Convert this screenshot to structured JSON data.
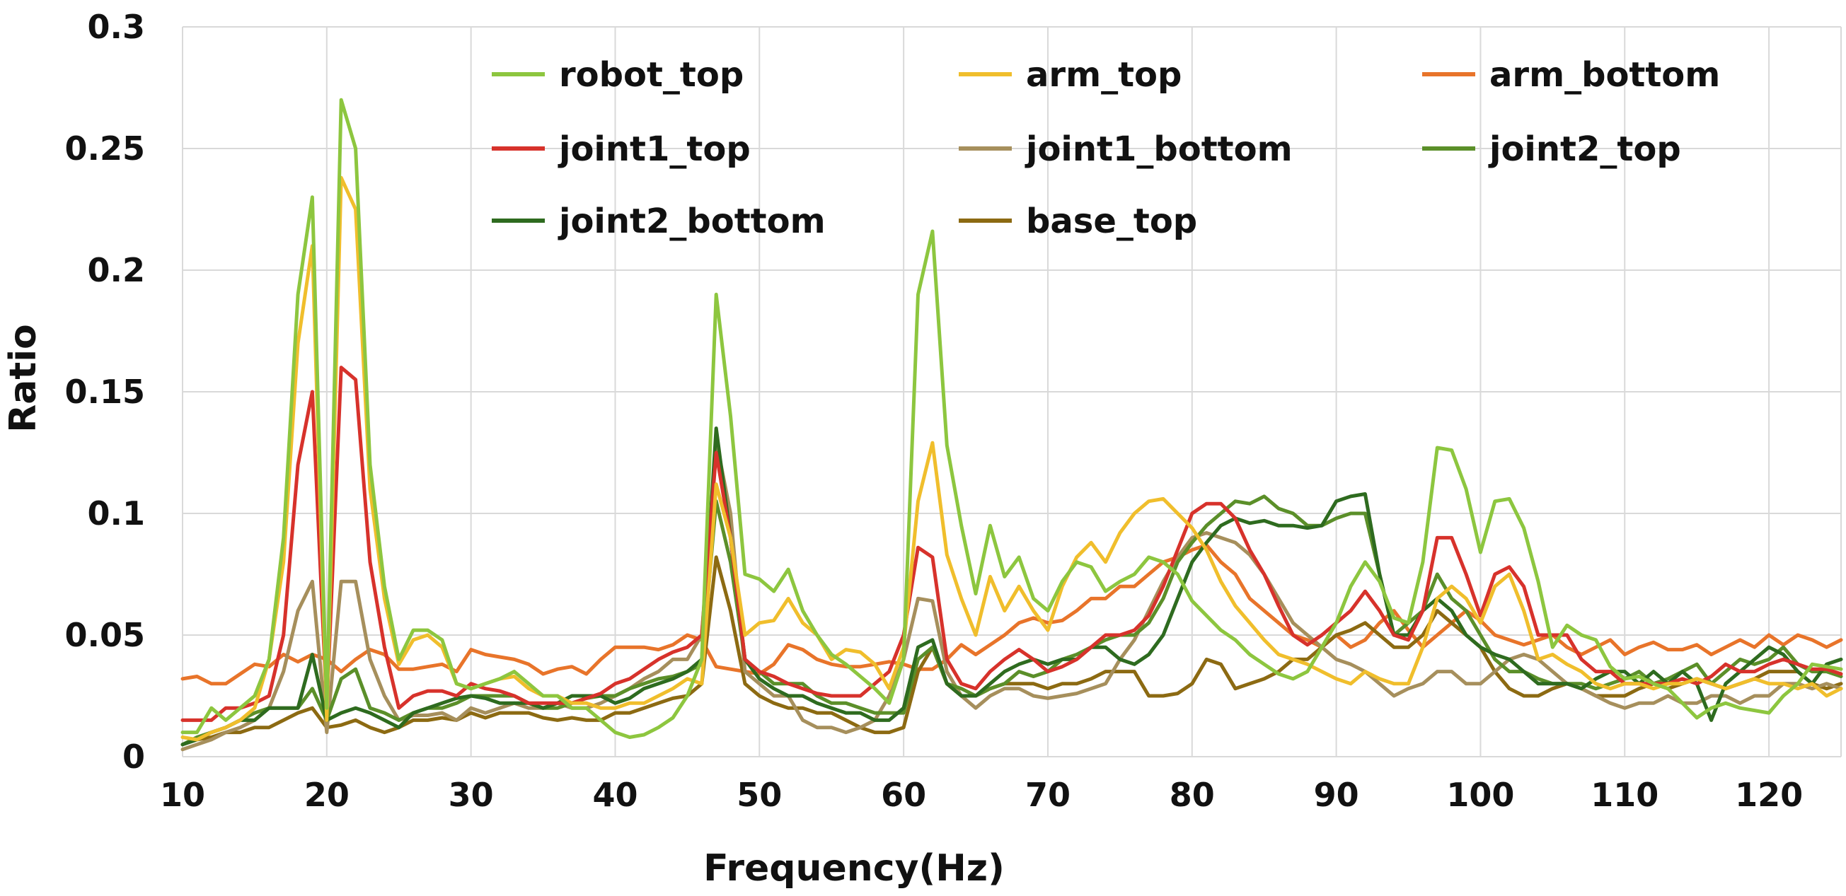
{
  "chart_data": {
    "type": "line",
    "title": "",
    "xlabel": "Frequency(Hz)",
    "ylabel": "Ratio",
    "xlim": [
      10,
      125
    ],
    "ylim": [
      0,
      0.3
    ],
    "x_ticks": [
      "10",
      "20",
      "30",
      "40",
      "50",
      "60",
      "70",
      "80",
      "90",
      "100",
      "110",
      "120"
    ],
    "y_ticks": [
      "0",
      "0.05",
      "0.1",
      "0.15",
      "0.2",
      "0.25",
      "0.3"
    ],
    "grid": "vertical and horizontal",
    "legend_position": "top, inside plot, 3 columns",
    "x": [
      10,
      11,
      12,
      13,
      14,
      15,
      16,
      17,
      18,
      19,
      20,
      21,
      22,
      23,
      24,
      25,
      26,
      27,
      28,
      29,
      30,
      31,
      32,
      33,
      34,
      35,
      36,
      37,
      38,
      39,
      40,
      41,
      42,
      43,
      44,
      45,
      46,
      47,
      48,
      49,
      50,
      51,
      52,
      53,
      54,
      55,
      56,
      57,
      58,
      59,
      60,
      61,
      62,
      63,
      64,
      65,
      66,
      67,
      68,
      69,
      70,
      71,
      72,
      73,
      74,
      75,
      76,
      77,
      78,
      79,
      80,
      81,
      82,
      83,
      84,
      85,
      86,
      87,
      88,
      89,
      90,
      91,
      92,
      93,
      94,
      95,
      96,
      97,
      98,
      99,
      100,
      101,
      102,
      103,
      104,
      105,
      106,
      107,
      108,
      109,
      110,
      111,
      112,
      113,
      114,
      115,
      116,
      117,
      118,
      119,
      120,
      121,
      122,
      123,
      124,
      125
    ],
    "series": [
      {
        "name": "robot_top",
        "color": "#8dc63f",
        "values": [
          0.01,
          0.01,
          0.02,
          0.015,
          0.02,
          0.025,
          0.04,
          0.09,
          0.19,
          0.23,
          0.02,
          0.27,
          0.25,
          0.12,
          0.07,
          0.04,
          0.052,
          0.052,
          0.048,
          0.03,
          0.028,
          0.03,
          0.032,
          0.035,
          0.03,
          0.025,
          0.025,
          0.02,
          0.02,
          0.015,
          0.01,
          0.008,
          0.009,
          0.012,
          0.016,
          0.025,
          0.04,
          0.19,
          0.14,
          0.075,
          0.073,
          0.068,
          0.077,
          0.06,
          0.05,
          0.042,
          0.038,
          0.033,
          0.028,
          0.022,
          0.04,
          0.19,
          0.216,
          0.128,
          0.095,
          0.067,
          0.095,
          0.074,
          0.082,
          0.065,
          0.06,
          0.072,
          0.08,
          0.078,
          0.068,
          0.072,
          0.075,
          0.082,
          0.08,
          0.075,
          0.064,
          0.058,
          0.052,
          0.048,
          0.042,
          0.038,
          0.034,
          0.032,
          0.035,
          0.045,
          0.055,
          0.07,
          0.08,
          0.072,
          0.057,
          0.055,
          0.08,
          0.127,
          0.126,
          0.11,
          0.084,
          0.105,
          0.106,
          0.094,
          0.072,
          0.045,
          0.054,
          0.05,
          0.048,
          0.037,
          0.032,
          0.033,
          0.03,
          0.028,
          0.022,
          0.016,
          0.02,
          0.022,
          0.02,
          0.019,
          0.018,
          0.025,
          0.03,
          0.038,
          0.037,
          0.036
        ]
      },
      {
        "name": "arm_top",
        "color": "#f0be2c",
        "values": [
          0.008,
          0.007,
          0.01,
          0.012,
          0.015,
          0.02,
          0.04,
          0.08,
          0.17,
          0.21,
          0.015,
          0.238,
          0.225,
          0.11,
          0.065,
          0.038,
          0.048,
          0.05,
          0.045,
          0.03,
          0.028,
          0.03,
          0.032,
          0.033,
          0.028,
          0.025,
          0.025,
          0.022,
          0.022,
          0.02,
          0.02,
          0.022,
          0.022,
          0.025,
          0.028,
          0.032,
          0.03,
          0.112,
          0.09,
          0.05,
          0.055,
          0.056,
          0.065,
          0.055,
          0.05,
          0.04,
          0.044,
          0.043,
          0.038,
          0.028,
          0.045,
          0.105,
          0.129,
          0.083,
          0.065,
          0.05,
          0.074,
          0.06,
          0.07,
          0.06,
          0.052,
          0.07,
          0.082,
          0.088,
          0.08,
          0.092,
          0.1,
          0.105,
          0.106,
          0.1,
          0.094,
          0.085,
          0.072,
          0.062,
          0.055,
          0.048,
          0.042,
          0.04,
          0.038,
          0.035,
          0.032,
          0.03,
          0.035,
          0.032,
          0.03,
          0.03,
          0.045,
          0.065,
          0.07,
          0.065,
          0.055,
          0.07,
          0.075,
          0.06,
          0.04,
          0.042,
          0.038,
          0.035,
          0.03,
          0.028,
          0.03,
          0.03,
          0.028,
          0.03,
          0.03,
          0.032,
          0.03,
          0.028,
          0.03,
          0.032,
          0.03,
          0.03,
          0.028,
          0.03,
          0.025,
          0.028
        ]
      },
      {
        "name": "arm_bottom",
        "color": "#e8742a",
        "values": [
          0.032,
          0.033,
          0.03,
          0.03,
          0.034,
          0.038,
          0.037,
          0.042,
          0.039,
          0.042,
          0.04,
          0.035,
          0.04,
          0.044,
          0.042,
          0.036,
          0.036,
          0.037,
          0.038,
          0.035,
          0.044,
          0.042,
          0.041,
          0.04,
          0.038,
          0.034,
          0.036,
          0.037,
          0.034,
          0.04,
          0.045,
          0.045,
          0.045,
          0.044,
          0.046,
          0.05,
          0.048,
          0.037,
          0.036,
          0.035,
          0.034,
          0.038,
          0.046,
          0.044,
          0.04,
          0.038,
          0.037,
          0.037,
          0.038,
          0.039,
          0.038,
          0.036,
          0.036,
          0.04,
          0.046,
          0.042,
          0.046,
          0.05,
          0.055,
          0.057,
          0.055,
          0.056,
          0.06,
          0.065,
          0.065,
          0.07,
          0.07,
          0.075,
          0.08,
          0.082,
          0.085,
          0.087,
          0.08,
          0.075,
          0.065,
          0.06,
          0.055,
          0.05,
          0.048,
          0.045,
          0.05,
          0.045,
          0.048,
          0.055,
          0.06,
          0.052,
          0.045,
          0.05,
          0.055,
          0.06,
          0.056,
          0.05,
          0.048,
          0.046,
          0.048,
          0.05,
          0.045,
          0.042,
          0.045,
          0.048,
          0.042,
          0.045,
          0.047,
          0.044,
          0.044,
          0.046,
          0.042,
          0.045,
          0.048,
          0.045,
          0.05,
          0.046,
          0.05,
          0.048,
          0.045,
          0.048
        ]
      },
      {
        "name": "joint1_top",
        "color": "#d7322b",
        "values": [
          0.015,
          0.015,
          0.015,
          0.02,
          0.02,
          0.022,
          0.025,
          0.05,
          0.12,
          0.15,
          0.02,
          0.16,
          0.155,
          0.08,
          0.045,
          0.02,
          0.025,
          0.027,
          0.027,
          0.025,
          0.03,
          0.028,
          0.027,
          0.025,
          0.022,
          0.022,
          0.022,
          0.022,
          0.024,
          0.026,
          0.03,
          0.032,
          0.036,
          0.04,
          0.043,
          0.045,
          0.05,
          0.125,
          0.09,
          0.04,
          0.035,
          0.033,
          0.03,
          0.028,
          0.026,
          0.025,
          0.025,
          0.025,
          0.03,
          0.035,
          0.05,
          0.086,
          0.082,
          0.04,
          0.03,
          0.028,
          0.035,
          0.04,
          0.044,
          0.04,
          0.035,
          0.037,
          0.04,
          0.045,
          0.05,
          0.05,
          0.052,
          0.058,
          0.07,
          0.085,
          0.1,
          0.104,
          0.104,
          0.098,
          0.085,
          0.075,
          0.062,
          0.05,
          0.046,
          0.05,
          0.055,
          0.06,
          0.068,
          0.06,
          0.05,
          0.048,
          0.06,
          0.09,
          0.09,
          0.075,
          0.058,
          0.075,
          0.078,
          0.07,
          0.05,
          0.05,
          0.05,
          0.04,
          0.035,
          0.035,
          0.03,
          0.03,
          0.03,
          0.03,
          0.032,
          0.03,
          0.033,
          0.038,
          0.035,
          0.035,
          0.038,
          0.04,
          0.038,
          0.036,
          0.036,
          0.034
        ]
      },
      {
        "name": "joint1_bottom",
        "color": "#a68f5c",
        "values": [
          0.003,
          0.005,
          0.007,
          0.01,
          0.012,
          0.015,
          0.02,
          0.035,
          0.06,
          0.072,
          0.01,
          0.072,
          0.072,
          0.04,
          0.025,
          0.015,
          0.017,
          0.017,
          0.018,
          0.015,
          0.02,
          0.018,
          0.02,
          0.022,
          0.02,
          0.02,
          0.022,
          0.02,
          0.02,
          0.022,
          0.025,
          0.028,
          0.032,
          0.035,
          0.04,
          0.04,
          0.05,
          0.13,
          0.1,
          0.035,
          0.03,
          0.025,
          0.025,
          0.015,
          0.012,
          0.012,
          0.01,
          0.012,
          0.015,
          0.025,
          0.04,
          0.065,
          0.064,
          0.035,
          0.025,
          0.02,
          0.025,
          0.028,
          0.028,
          0.025,
          0.024,
          0.025,
          0.026,
          0.028,
          0.03,
          0.04,
          0.048,
          0.06,
          0.072,
          0.082,
          0.09,
          0.092,
          0.09,
          0.088,
          0.083,
          0.075,
          0.065,
          0.055,
          0.05,
          0.045,
          0.04,
          0.038,
          0.035,
          0.03,
          0.025,
          0.028,
          0.03,
          0.035,
          0.035,
          0.03,
          0.03,
          0.035,
          0.04,
          0.042,
          0.04,
          0.035,
          0.03,
          0.028,
          0.025,
          0.022,
          0.02,
          0.022,
          0.022,
          0.025,
          0.022,
          0.022,
          0.025,
          0.025,
          0.022,
          0.025,
          0.025,
          0.03,
          0.03,
          0.028,
          0.03,
          0.028
        ]
      },
      {
        "name": "joint2_top",
        "color": "#5b8f29",
        "values": [
          0.005,
          0.008,
          0.01,
          0.012,
          0.015,
          0.018,
          0.02,
          0.02,
          0.02,
          0.028,
          0.015,
          0.032,
          0.036,
          0.02,
          0.018,
          0.015,
          0.018,
          0.02,
          0.02,
          0.022,
          0.025,
          0.025,
          0.025,
          0.025,
          0.022,
          0.02,
          0.02,
          0.022,
          0.024,
          0.025,
          0.025,
          0.028,
          0.03,
          0.032,
          0.033,
          0.035,
          0.038,
          0.105,
          0.08,
          0.04,
          0.035,
          0.03,
          0.03,
          0.03,
          0.025,
          0.022,
          0.022,
          0.02,
          0.018,
          0.018,
          0.018,
          0.04,
          0.045,
          0.03,
          0.028,
          0.025,
          0.028,
          0.03,
          0.035,
          0.033,
          0.035,
          0.04,
          0.042,
          0.045,
          0.048,
          0.05,
          0.05,
          0.055,
          0.065,
          0.08,
          0.088,
          0.095,
          0.1,
          0.105,
          0.104,
          0.107,
          0.102,
          0.1,
          0.095,
          0.095,
          0.098,
          0.1,
          0.1,
          0.075,
          0.05,
          0.055,
          0.06,
          0.075,
          0.065,
          0.06,
          0.05,
          0.04,
          0.035,
          0.035,
          0.032,
          0.03,
          0.03,
          0.03,
          0.028,
          0.03,
          0.032,
          0.035,
          0.03,
          0.032,
          0.035,
          0.038,
          0.03,
          0.035,
          0.04,
          0.038,
          0.04,
          0.045,
          0.038,
          0.035,
          0.035,
          0.033
        ]
      },
      {
        "name": "joint2_bottom",
        "color": "#2e6b1f",
        "values": [
          0.005,
          0.007,
          0.01,
          0.012,
          0.015,
          0.015,
          0.02,
          0.02,
          0.02,
          0.042,
          0.015,
          0.018,
          0.02,
          0.018,
          0.015,
          0.012,
          0.018,
          0.02,
          0.022,
          0.024,
          0.025,
          0.024,
          0.022,
          0.022,
          0.022,
          0.02,
          0.022,
          0.025,
          0.025,
          0.025,
          0.022,
          0.024,
          0.028,
          0.03,
          0.032,
          0.035,
          0.04,
          0.135,
          0.09,
          0.04,
          0.032,
          0.028,
          0.025,
          0.025,
          0.022,
          0.02,
          0.018,
          0.018,
          0.015,
          0.015,
          0.02,
          0.045,
          0.048,
          0.03,
          0.025,
          0.025,
          0.03,
          0.035,
          0.038,
          0.04,
          0.038,
          0.04,
          0.04,
          0.045,
          0.045,
          0.04,
          0.038,
          0.042,
          0.05,
          0.065,
          0.08,
          0.088,
          0.095,
          0.098,
          0.096,
          0.097,
          0.095,
          0.095,
          0.094,
          0.095,
          0.105,
          0.107,
          0.108,
          0.075,
          0.05,
          0.05,
          0.06,
          0.065,
          0.06,
          0.05,
          0.045,
          0.042,
          0.04,
          0.035,
          0.03,
          0.03,
          0.03,
          0.028,
          0.032,
          0.035,
          0.035,
          0.03,
          0.035,
          0.03,
          0.035,
          0.03,
          0.015,
          0.03,
          0.035,
          0.04,
          0.045,
          0.042,
          0.035,
          0.03,
          0.038,
          0.04
        ]
      },
      {
        "name": "base_top",
        "color": "#8c6a12",
        "values": [
          0.005,
          0.007,
          0.008,
          0.01,
          0.01,
          0.012,
          0.012,
          0.015,
          0.018,
          0.02,
          0.012,
          0.013,
          0.015,
          0.012,
          0.01,
          0.012,
          0.015,
          0.015,
          0.016,
          0.015,
          0.018,
          0.016,
          0.018,
          0.018,
          0.018,
          0.016,
          0.015,
          0.016,
          0.015,
          0.015,
          0.018,
          0.018,
          0.02,
          0.022,
          0.024,
          0.025,
          0.03,
          0.082,
          0.06,
          0.03,
          0.025,
          0.022,
          0.02,
          0.02,
          0.018,
          0.018,
          0.015,
          0.012,
          0.01,
          0.01,
          0.012,
          0.035,
          0.045,
          0.03,
          0.025,
          0.025,
          0.028,
          0.03,
          0.03,
          0.03,
          0.028,
          0.03,
          0.03,
          0.032,
          0.035,
          0.035,
          0.035,
          0.025,
          0.025,
          0.026,
          0.03,
          0.04,
          0.038,
          0.028,
          0.03,
          0.032,
          0.035,
          0.04,
          0.04,
          0.045,
          0.05,
          0.052,
          0.055,
          0.05,
          0.045,
          0.045,
          0.05,
          0.06,
          0.055,
          0.05,
          0.045,
          0.035,
          0.028,
          0.025,
          0.025,
          0.028,
          0.03,
          0.028,
          0.025,
          0.025,
          0.025,
          0.028,
          0.03,
          0.028,
          0.03,
          0.032,
          0.03,
          0.028,
          0.03,
          0.032,
          0.035,
          0.035,
          0.035,
          0.03,
          0.028,
          0.03
        ]
      }
    ]
  }
}
